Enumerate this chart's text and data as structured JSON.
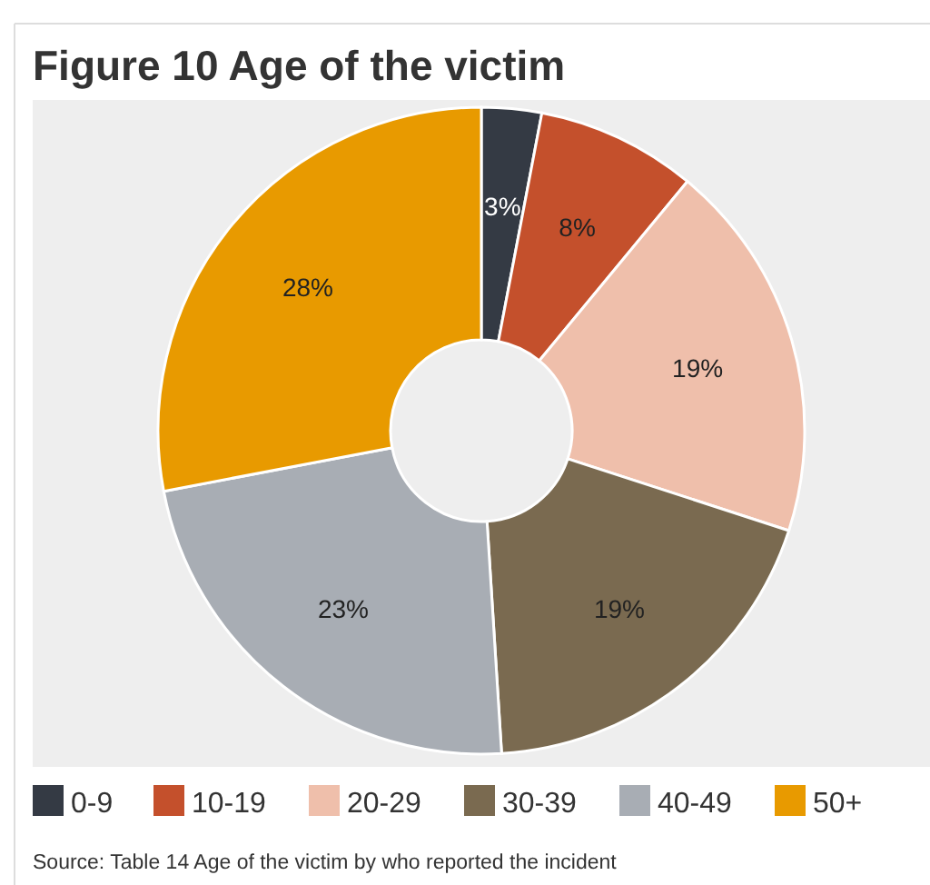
{
  "chart_data": {
    "type": "donut",
    "title": "Figure 10 Age of the victim",
    "categories": [
      "0-9",
      "10-19",
      "20-29",
      "30-39",
      "40-49",
      "50+"
    ],
    "values": [
      3,
      8,
      19,
      19,
      23,
      28
    ],
    "colors": [
      "#343a44",
      "#c4502c",
      "#efbfab",
      "#7a6a50",
      "#a8adb4",
      "#e89a00"
    ],
    "value_labels": [
      "3%",
      "8%",
      "19%",
      "19%",
      "23%",
      "28%"
    ],
    "legend": "bottom",
    "annotations": [
      "Source: Table 14 Age of the victim by who reported the incident"
    ]
  }
}
